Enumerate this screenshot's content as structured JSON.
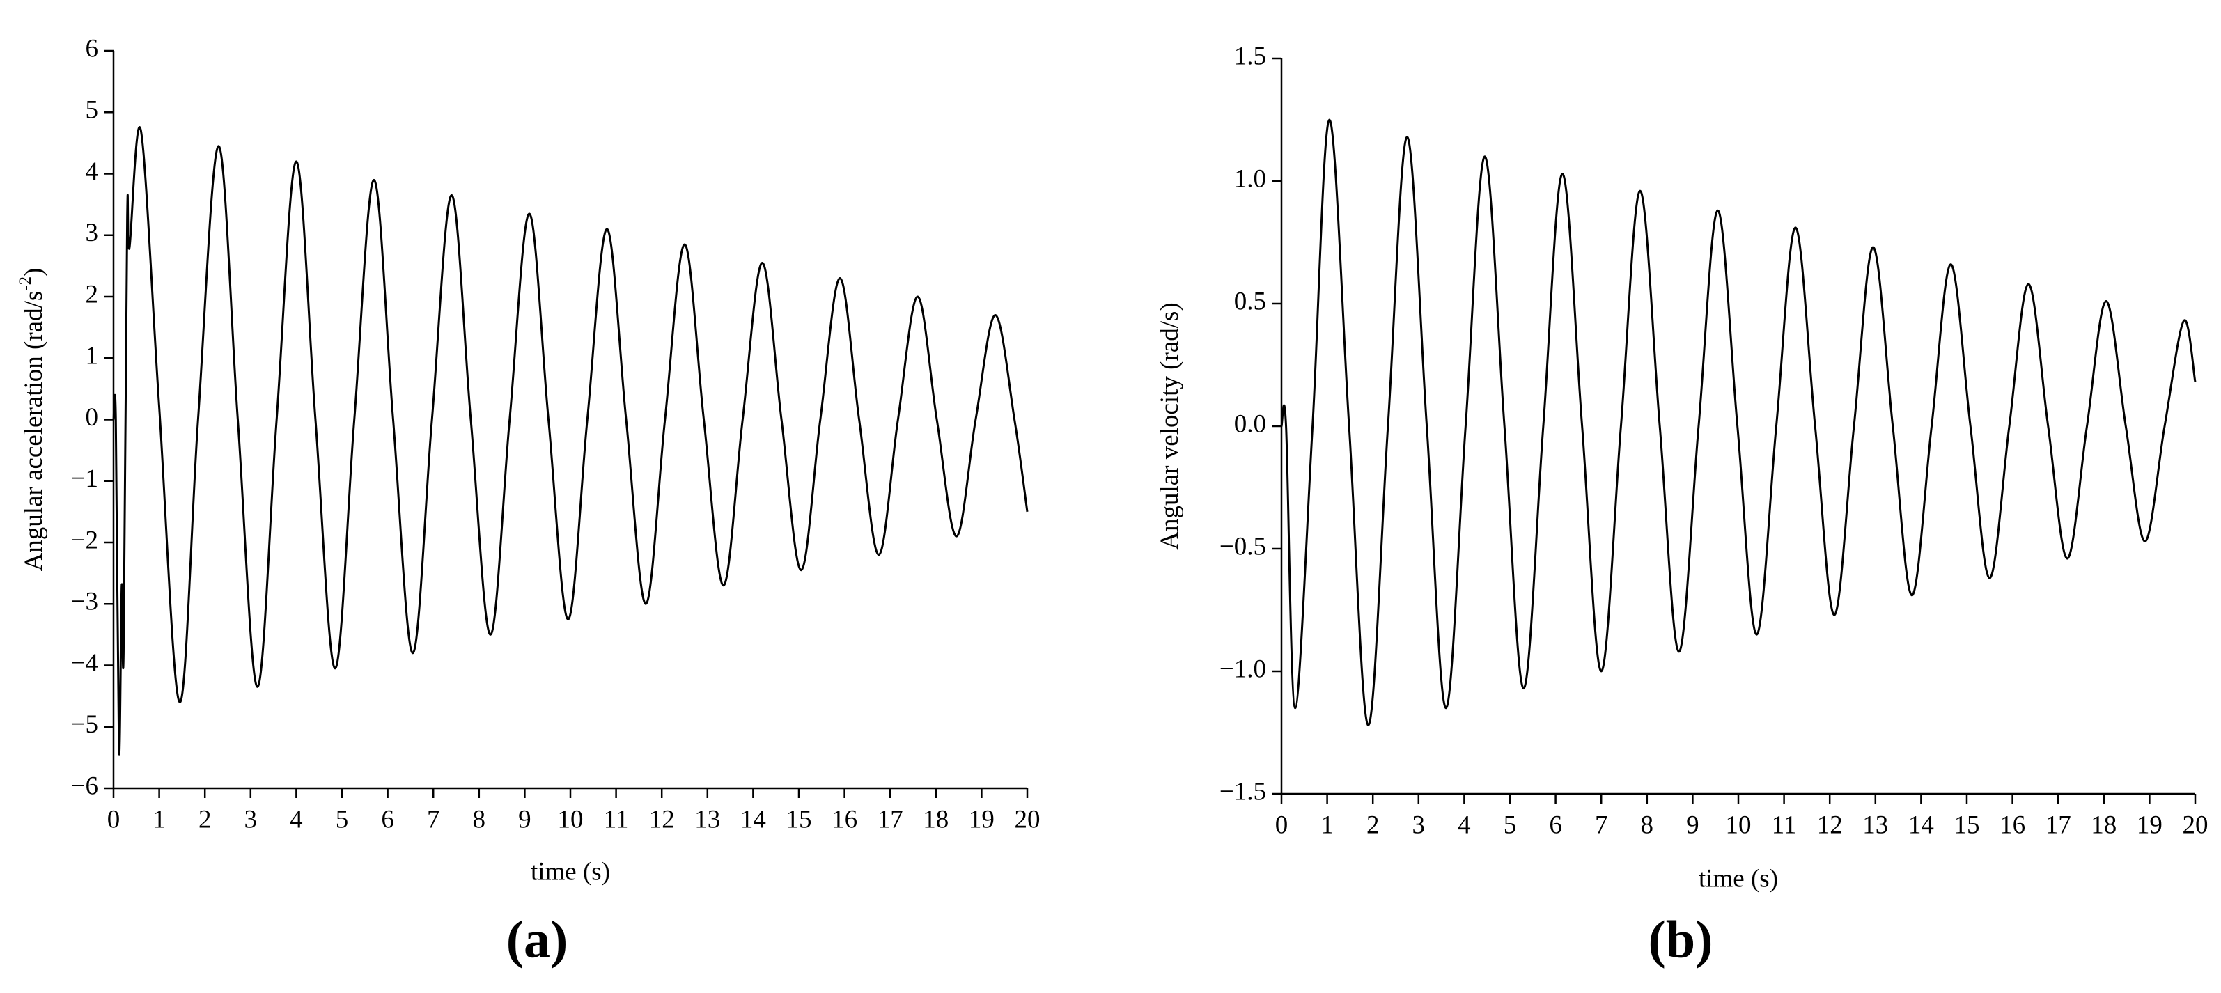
{
  "chart_data": [
    {
      "type": "line",
      "caption": "(a)",
      "xlabel": "time (s)",
      "ylabel": "Angular acceleration (rad/s",
      "ylabel_sup": "-2",
      "ylabel_end": ")",
      "color": "#000000",
      "xlim": [
        0,
        20
      ],
      "xticks": [
        0,
        1,
        2,
        3,
        4,
        5,
        6,
        7,
        8,
        9,
        10,
        11,
        12,
        13,
        14,
        15,
        16,
        17,
        18,
        19,
        20
      ],
      "ylim": [
        -6,
        6
      ],
      "yticks": [
        {
          "value": -6,
          "label": "−6"
        },
        {
          "value": -5,
          "label": "−5"
        },
        {
          "value": -4,
          "label": "−4"
        },
        {
          "value": -3,
          "label": "−3"
        },
        {
          "value": -2,
          "label": "−2"
        },
        {
          "value": -1,
          "label": "−1"
        },
        0,
        1,
        2,
        3,
        4,
        5,
        6
      ],
      "x": [
        0,
        0.05,
        0.12,
        0.18,
        0.22,
        0.3,
        0.35,
        0.6,
        1.0,
        1.45,
        1.85,
        2.3,
        2.72,
        3.15,
        3.57,
        4.0,
        4.42,
        4.85,
        5.27,
        5.7,
        6.12,
        6.55,
        6.97,
        7.4,
        7.82,
        8.25,
        8.67,
        9.1,
        9.52,
        9.95,
        10.37,
        10.8,
        11.22,
        11.65,
        12.07,
        12.5,
        12.92,
        13.35,
        13.77,
        14.2,
        14.62,
        15.05,
        15.47,
        15.9,
        16.32,
        16.75,
        17.17,
        17.6,
        18.02,
        18.45,
        18.87,
        19.3,
        19.72,
        20
      ],
      "values": [
        0,
        0,
        -5.4,
        -2.7,
        -3.8,
        3.3,
        2.8,
        4.7,
        0.2,
        -4.6,
        0,
        4.45,
        0,
        -4.35,
        0,
        4.2,
        0,
        -4.05,
        0,
        3.9,
        0,
        -3.8,
        0,
        3.65,
        0,
        -3.5,
        0,
        3.35,
        0,
        -3.25,
        0,
        3.1,
        0,
        -3.0,
        0,
        2.85,
        0,
        -2.7,
        0,
        2.55,
        0,
        -2.45,
        0,
        2.3,
        0,
        -2.2,
        0,
        2.0,
        0,
        -1.9,
        0,
        1.7,
        0,
        -1.5
      ]
    },
    {
      "type": "line",
      "caption": "(b)",
      "xlabel": "time (s)",
      "ylabel": "Angular velocity (rad/s)",
      "color": "#000000",
      "xlim": [
        0,
        20
      ],
      "xticks": [
        0,
        1,
        2,
        3,
        4,
        5,
        6,
        7,
        8,
        9,
        10,
        11,
        12,
        13,
        14,
        15,
        16,
        17,
        18,
        19,
        20
      ],
      "ylim": [
        -1.5,
        1.5
      ],
      "yticks": [
        {
          "value": -1.5,
          "label": "−1.5"
        },
        {
          "value": -1.0,
          "label": "−1.0"
        },
        {
          "value": -0.5,
          "label": "−0.5"
        },
        {
          "value": 0,
          "label": "0.0"
        },
        0.5,
        {
          "value": 1.0,
          "label": "1.0"
        },
        1.5
      ],
      "x": [
        0,
        0.1,
        0.3,
        0.68,
        1.05,
        1.48,
        1.9,
        2.33,
        2.75,
        3.18,
        3.6,
        4.03,
        4.45,
        4.88,
        5.3,
        5.73,
        6.15,
        6.58,
        7.0,
        7.43,
        7.85,
        8.28,
        8.7,
        9.13,
        9.55,
        9.98,
        10.4,
        10.83,
        11.25,
        11.68,
        12.1,
        12.53,
        12.95,
        13.38,
        13.8,
        14.23,
        14.65,
        15.08,
        15.5,
        15.93,
        16.35,
        16.78,
        17.2,
        17.63,
        18.05,
        18.48,
        18.9,
        19.33,
        19.75,
        20
      ],
      "values": [
        0,
        0,
        -1.15,
        0,
        1.25,
        0,
        -1.22,
        0,
        1.18,
        0,
        -1.15,
        0,
        1.1,
        0,
        -1.07,
        0,
        1.03,
        0,
        -1.0,
        0,
        0.96,
        0,
        -0.92,
        0,
        0.88,
        0,
        -0.85,
        0,
        0.81,
        0,
        -0.77,
        0,
        0.73,
        0,
        -0.69,
        0,
        0.66,
        0,
        -0.62,
        0,
        0.58,
        0,
        -0.54,
        0,
        0.51,
        0,
        -0.47,
        0,
        0.43,
        0.18
      ]
    }
  ]
}
